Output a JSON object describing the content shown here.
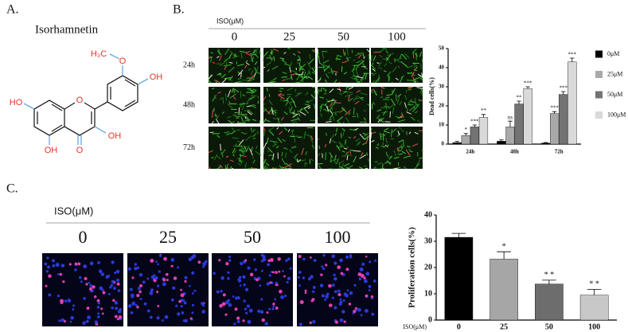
{
  "panel_a": {
    "label": "A.",
    "title": "Isorhamnetin",
    "atoms": [
      "H₃C",
      "O",
      "OH",
      "HO",
      "O",
      "OH",
      "O",
      "OH"
    ]
  },
  "panel_b": {
    "label": "B.",
    "header": "ISO(μM)",
    "columns": [
      "0",
      "25",
      "50",
      "100"
    ],
    "rows": [
      "24h",
      "48h",
      "72h"
    ]
  },
  "panel_c": {
    "label": "C.",
    "header": "ISO(μM)",
    "columns": [
      "0",
      "25",
      "50",
      "100"
    ]
  },
  "chart_data": [
    {
      "type": "bar",
      "ylabel": "Dead cells(%)",
      "categories": [
        "24h",
        "48h",
        "72h"
      ],
      "ylim": [
        0,
        50
      ],
      "yticks": [
        0,
        10,
        20,
        30,
        40,
        50
      ],
      "legend": "right",
      "series": [
        {
          "name": "0μM",
          "color": "#000000",
          "values": [
            0.8,
            1.5,
            0.5
          ],
          "errors": [
            0.6,
            0.7,
            0.3
          ]
        },
        {
          "name": "25μM",
          "color": "#a9a9a9",
          "values": [
            4.5,
            9,
            16
          ],
          "errors": [
            1,
            3,
            1
          ],
          "annotations": [
            "*",
            "ns",
            "***"
          ]
        },
        {
          "name": "50μM",
          "color": "#737373",
          "values": [
            9,
            21,
            26
          ],
          "errors": [
            1,
            1.5,
            1.5
          ],
          "annotations": [
            "***",
            "**",
            "***"
          ]
        },
        {
          "name": "100μM",
          "color": "#d9d9d9",
          "values": [
            14,
            29,
            43
          ],
          "errors": [
            1.5,
            1,
            2
          ],
          "annotations": [
            "**",
            "***",
            "***"
          ]
        }
      ]
    },
    {
      "type": "bar",
      "ylabel": "Proliferation cells(%)",
      "xlabel": "ISO(μM)",
      "categories": [
        "0",
        "25",
        "50",
        "100"
      ],
      "values": [
        31.5,
        23.2,
        13.7,
        9.5
      ],
      "errors": [
        1.5,
        2.8,
        1.5,
        2.2
      ],
      "colors": [
        "#000000",
        "#a6a6a6",
        "#6d6d6d",
        "#c8c8c8"
      ],
      "annotations": [
        null,
        "*",
        "* *",
        "* *"
      ],
      "ylim": [
        0,
        40
      ],
      "yticks": [
        0,
        10,
        20,
        30,
        40
      ]
    }
  ]
}
